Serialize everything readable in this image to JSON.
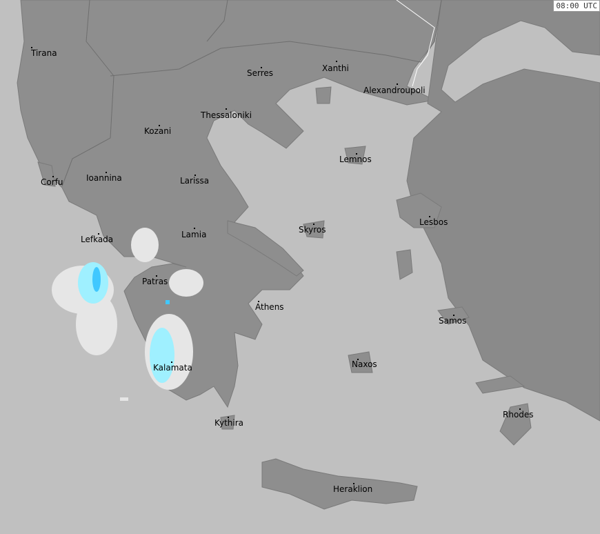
{
  "timestamp": "08:00 UTC",
  "colors": {
    "sea": "#c0c0c0",
    "land": "#8e8e8e",
    "neighbour_land": "#888888",
    "border": "#6e6e6e",
    "precip_light": "#e6e6e6",
    "precip_moderate": "#9ff0ff",
    "precip_heavy": "#40c8ff"
  },
  "cities": [
    {
      "name": "Tirana"
    },
    {
      "name": "Serres"
    },
    {
      "name": "Xanthi"
    },
    {
      "name": "Alexandroupoli"
    },
    {
      "name": "Thessaloniki"
    },
    {
      "name": "Kozani"
    },
    {
      "name": "Lemnos"
    },
    {
      "name": "Corfu"
    },
    {
      "name": "Ioannina"
    },
    {
      "name": "Larissa"
    },
    {
      "name": "Lesbos"
    },
    {
      "name": "Skyros"
    },
    {
      "name": "Lamia"
    },
    {
      "name": "Lefkada"
    },
    {
      "name": "Patras"
    },
    {
      "name": "Athens"
    },
    {
      "name": "Samos"
    },
    {
      "name": "Naxos"
    },
    {
      "name": "Kalamata"
    },
    {
      "name": "Rhodes"
    },
    {
      "name": "Kythira"
    },
    {
      "name": "Heraklion"
    }
  ]
}
